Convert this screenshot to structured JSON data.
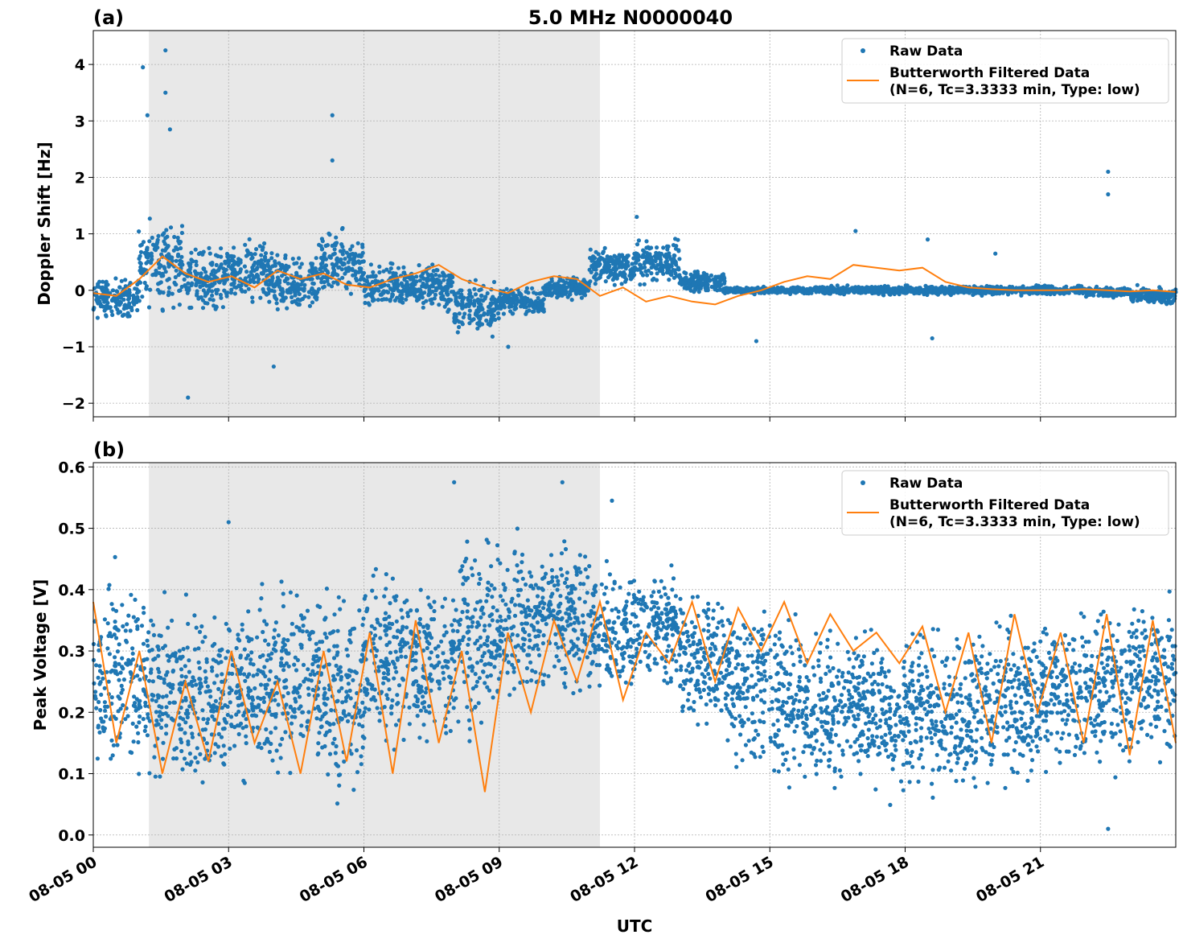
{
  "title": "5.0 MHz N0000040",
  "chart_data": [
    {
      "panel_label": "(a)",
      "type": "scatter",
      "ylabel": "Doppler Shift [Hz]",
      "ylim": [
        -2.24,
        4.6
      ],
      "yticks": [
        -2,
        -1,
        0,
        1,
        2,
        3,
        4
      ],
      "ytick_labels": [
        "−2",
        "−1",
        "0",
        "1",
        "2",
        "3",
        "4"
      ],
      "xlim": [
        "08-05 00:00",
        "08-06 00:00"
      ],
      "grid": true,
      "legend_placement": "upper right",
      "shaded_region": [
        "08-05 01:14",
        "08-05 11:14"
      ],
      "legend": [
        "Raw Data",
        "Butterworth Filtered Data",
        "(N=6, Tc=3.3333 min, Type: low)"
      ],
      "raw_hourly_range": [
        [
          -0.6,
          0.3
        ],
        [
          -0.5,
          1.5
        ],
        [
          -0.5,
          0.9
        ],
        [
          -0.4,
          1.0
        ],
        [
          -0.6,
          0.8
        ],
        [
          -0.3,
          1.2
        ],
        [
          -0.4,
          0.6
        ],
        [
          -0.5,
          0.6
        ],
        [
          -0.9,
          0.3
        ],
        [
          -0.5,
          0.1
        ],
        [
          -0.2,
          0.3
        ],
        [
          0.0,
          0.8
        ],
        [
          0.0,
          1.0
        ],
        [
          -0.1,
          0.4
        ],
        [
          -0.08,
          0.08
        ],
        [
          -0.08,
          0.08
        ],
        [
          -0.1,
          0.1
        ],
        [
          -0.1,
          0.1
        ],
        [
          -0.1,
          0.1
        ],
        [
          -0.1,
          0.1
        ],
        [
          -0.1,
          0.1
        ],
        [
          -0.1,
          0.1
        ],
        [
          -0.15,
          0.1
        ],
        [
          -0.3,
          0.1
        ]
      ],
      "raw_outliers": [
        [
          1.1,
          3.95
        ],
        [
          1.6,
          4.25
        ],
        [
          1.6,
          3.5
        ],
        [
          1.2,
          3.1
        ],
        [
          1.7,
          2.85
        ],
        [
          2.1,
          -1.9
        ],
        [
          4.0,
          -1.35
        ],
        [
          5.3,
          3.1
        ],
        [
          5.3,
          2.3
        ],
        [
          12.05,
          1.3
        ],
        [
          22.5,
          2.1
        ],
        [
          22.5,
          1.7
        ],
        [
          16.9,
          1.05
        ],
        [
          14.7,
          -0.9
        ],
        [
          18.5,
          0.9
        ],
        [
          18.6,
          -0.85
        ],
        [
          20.0,
          0.65
        ],
        [
          9.2,
          -1.0
        ]
      ],
      "filtered": [
        -0.05,
        -0.1,
        0.2,
        0.6,
        0.3,
        0.15,
        0.25,
        0.05,
        0.35,
        0.2,
        0.3,
        0.1,
        0.05,
        0.2,
        0.3,
        0.45,
        0.2,
        0.05,
        -0.05,
        0.15,
        0.25,
        0.2,
        -0.1,
        0.05,
        -0.2,
        -0.1,
        -0.2,
        -0.25,
        -0.1,
        0.0,
        0.15,
        0.25,
        0.2,
        0.45,
        0.4,
        0.35,
        0.4,
        0.15,
        0.05,
        0.02,
        0.0,
        0.0,
        0.0,
        0.02,
        0.0,
        -0.02,
        0.0,
        -0.03
      ],
      "xticks": [
        "08-05 00",
        "08-05 03",
        "08-05 06",
        "08-05 09",
        "08-05 12",
        "08-05 15",
        "08-05 18",
        "08-05 21"
      ]
    },
    {
      "panel_label": "(b)",
      "type": "scatter",
      "ylabel": "Peak Voltage [V]",
      "ylim": [
        -0.02,
        0.607
      ],
      "yticks": [
        0,
        0.1,
        0.2,
        0.3,
        0.4,
        0.5,
        0.6
      ],
      "ytick_labels": [
        "0.0",
        "0.1",
        "0.2",
        "0.3",
        "0.4",
        "0.5",
        "0.6"
      ],
      "xlim": [
        "08-05 00:00",
        "08-06 00:00"
      ],
      "grid": true,
      "legend_placement": "upper right",
      "shaded_region": [
        "08-05 01:14",
        "08-05 11:14"
      ],
      "legend": [
        "Raw Data",
        "Butterworth Filtered Data",
        "(N=6, Tc=3.3333 min, Type: low)"
      ],
      "raw_hourly_range": [
        [
          0.07,
          0.46
        ],
        [
          0.05,
          0.43
        ],
        [
          0.05,
          0.41
        ],
        [
          0.05,
          0.43
        ],
        [
          0.05,
          0.44
        ],
        [
          0.03,
          0.44
        ],
        [
          0.1,
          0.47
        ],
        [
          0.1,
          0.46
        ],
        [
          0.14,
          0.52
        ],
        [
          0.18,
          0.52
        ],
        [
          0.2,
          0.52
        ],
        [
          0.2,
          0.46
        ],
        [
          0.22,
          0.46
        ],
        [
          0.15,
          0.43
        ],
        [
          0.08,
          0.41
        ],
        [
          0.04,
          0.39
        ],
        [
          0.04,
          0.38
        ],
        [
          0.03,
          0.37
        ],
        [
          0.04,
          0.37
        ],
        [
          0.04,
          0.37
        ],
        [
          0.04,
          0.38
        ],
        [
          0.07,
          0.39
        ],
        [
          0.07,
          0.41
        ],
        [
          0.08,
          0.43
        ]
      ],
      "raw_outliers": [
        [
          3.0,
          0.51
        ],
        [
          8.0,
          0.575
        ],
        [
          10.4,
          0.575
        ],
        [
          11.5,
          0.545
        ],
        [
          22.5,
          0.01
        ]
      ],
      "filtered": [
        0.38,
        0.15,
        0.3,
        0.1,
        0.25,
        0.12,
        0.3,
        0.15,
        0.25,
        0.1,
        0.3,
        0.12,
        0.33,
        0.1,
        0.35,
        0.15,
        0.3,
        0.07,
        0.33,
        0.2,
        0.35,
        0.25,
        0.38,
        0.22,
        0.33,
        0.28,
        0.38,
        0.25,
        0.37,
        0.3,
        0.38,
        0.28,
        0.36,
        0.3,
        0.33,
        0.28,
        0.34,
        0.2,
        0.33,
        0.15,
        0.36,
        0.2,
        0.33,
        0.15,
        0.36,
        0.13,
        0.35,
        0.15
      ],
      "xticks": [
        "08-05 00",
        "08-05 03",
        "08-05 06",
        "08-05 09",
        "08-05 12",
        "08-05 15",
        "08-05 18",
        "08-05 21"
      ],
      "xlabel": "UTC"
    }
  ],
  "colors": {
    "raw": "#1f77b4",
    "filtered": "#ff7f0e",
    "shade": "#e8e8e8"
  }
}
